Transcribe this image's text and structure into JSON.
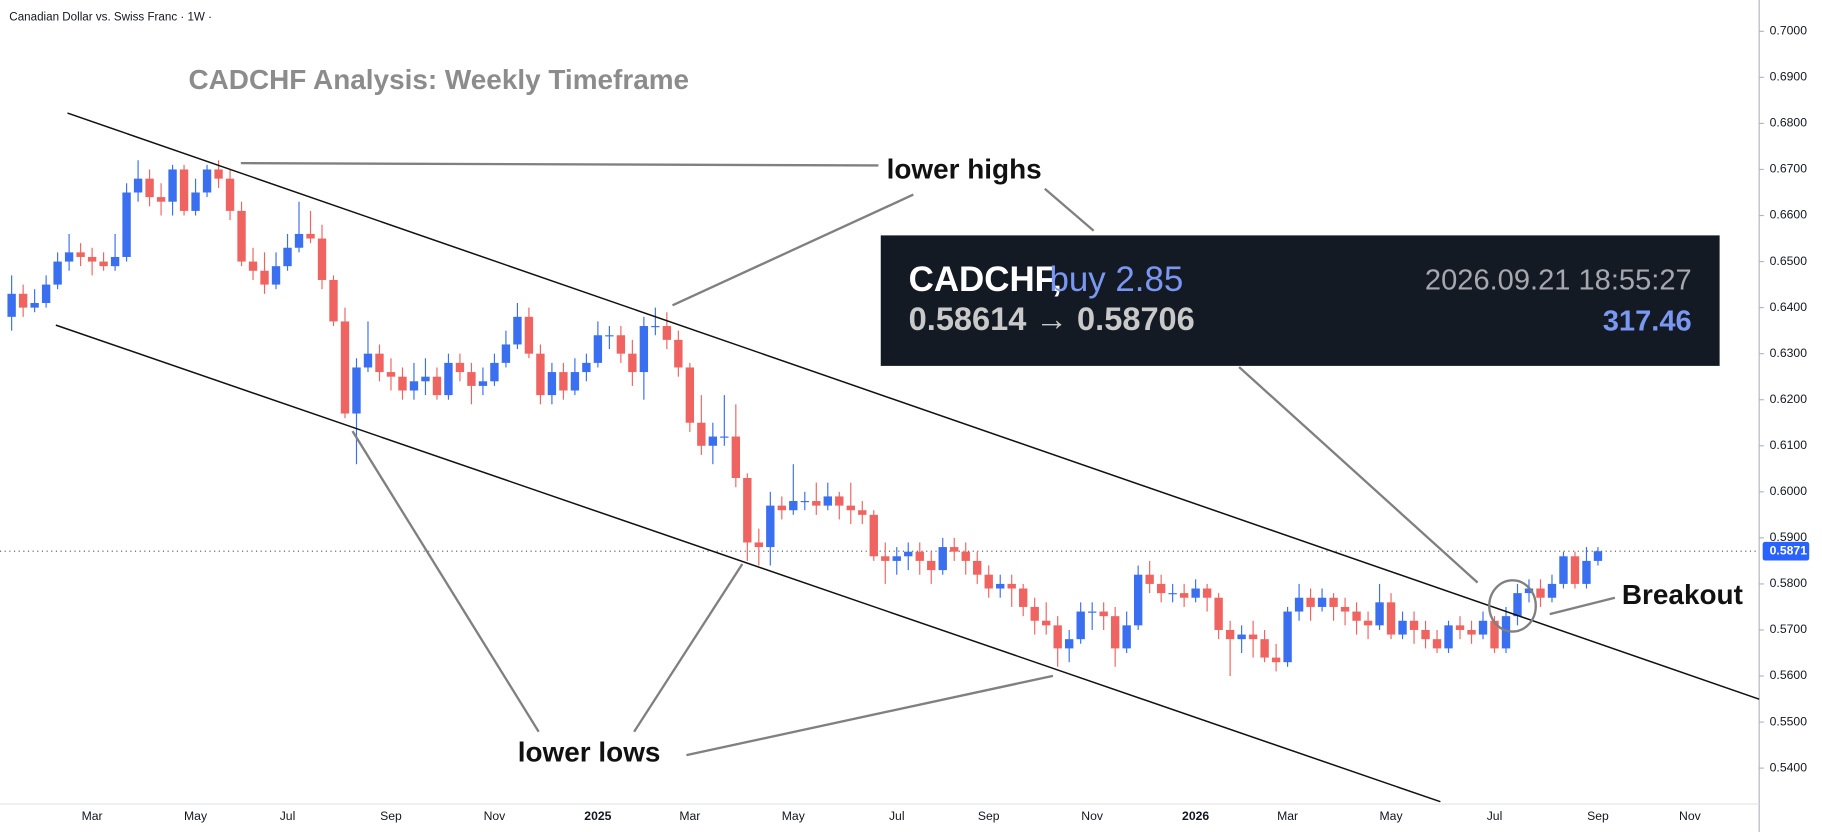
{
  "chart_data": {
    "type": "candlestick",
    "header": "Canadian Dollar vs. Swiss Franc · 1W ·",
    "title": "CADCHF Analysis: Weekly Timeframe",
    "annotations": {
      "lower_highs": "lower highs",
      "lower_lows": "lower lows",
      "breakout": "Breakout"
    },
    "trade_box": {
      "symbol": "CADCHF,",
      "action": "buy 2.85",
      "timestamp": "2026.09.21 18:55:27",
      "prices": "0.58614 → 0.58706",
      "profit": "317.46"
    },
    "up_color": "#3a6ff0",
    "down_color": "#ef6461",
    "last_price": 0.5871,
    "last_price_color": "#2962ff",
    "categories": [
      null,
      null,
      null,
      null,
      null,
      null,
      null,
      "Mar",
      null,
      null,
      null,
      null,
      null,
      null,
      null,
      null,
      "May",
      null,
      null,
      null,
      null,
      null,
      null,
      null,
      "Jul",
      null,
      null,
      null,
      null,
      null,
      null,
      null,
      null,
      "Sep",
      null,
      null,
      null,
      null,
      null,
      null,
      null,
      null,
      "Nov",
      null,
      null,
      null,
      null,
      null,
      null,
      null,
      null,
      "2025",
      null,
      null,
      null,
      null,
      null,
      null,
      null,
      "Mar",
      null,
      null,
      null,
      null,
      null,
      null,
      null,
      null,
      "May",
      null,
      null,
      null,
      null,
      null,
      null,
      null,
      null,
      "Jul",
      null,
      null,
      null,
      null,
      null,
      null,
      null,
      "Sep",
      null,
      null,
      null,
      null,
      null,
      null,
      null,
      null,
      "Nov",
      null,
      null,
      null,
      null,
      null,
      null,
      null,
      null,
      "2026",
      null,
      null,
      null,
      null,
      null,
      null,
      null,
      "Mar",
      null,
      null,
      null,
      null,
      null,
      null,
      null,
      null,
      "May",
      null,
      null,
      null,
      null,
      null,
      null,
      null,
      null,
      "Jul",
      null,
      null,
      null,
      null,
      null,
      null,
      null,
      null,
      "Sep",
      null,
      null,
      null,
      null,
      null,
      null,
      null,
      "Nov",
      null,
      null,
      null,
      null,
      null,
      null
    ],
    "open": [
      0.638,
      0.643,
      0.64,
      0.641,
      0.645,
      0.65,
      0.652,
      0.651,
      0.65,
      0.649,
      0.651,
      0.665,
      0.668,
      0.664,
      0.663,
      0.67,
      0.661,
      0.665,
      0.67,
      0.668,
      0.661,
      0.65,
      0.648,
      0.645,
      0.649,
      0.653,
      0.656,
      0.655,
      0.646,
      0.637,
      0.617,
      0.627,
      0.63,
      0.626,
      0.625,
      0.622,
      0.624,
      0.625,
      0.621,
      0.628,
      0.626,
      0.623,
      0.624,
      0.628,
      0.632,
      0.638,
      0.63,
      0.621,
      0.626,
      0.622,
      0.626,
      0.628,
      0.634,
      0.634,
      0.63,
      0.626,
      0.636,
      0.636,
      0.633,
      0.627,
      0.615,
      0.61,
      0.612,
      0.612,
      0.603,
      0.589,
      0.588,
      0.597,
      0.596,
      0.598,
      0.598,
      0.597,
      0.599,
      0.597,
      0.596,
      0.595,
      0.586,
      0.585,
      0.586,
      0.587,
      0.585,
      0.583,
      0.588,
      0.587,
      0.585,
      0.582,
      0.579,
      0.58,
      0.579,
      0.575,
      0.572,
      0.571,
      0.566,
      0.568,
      0.574,
      0.574,
      0.573,
      0.566,
      0.571,
      0.582,
      0.58,
      0.578,
      0.578,
      0.577,
      0.579,
      0.577,
      0.57,
      0.568,
      0.569,
      0.568,
      0.564,
      0.563,
      0.574,
      0.577,
      0.575,
      0.577,
      0.575,
      0.574,
      0.572,
      0.571,
      0.576,
      0.569,
      0.572,
      0.57,
      0.568,
      0.566,
      0.571,
      0.57,
      0.569,
      0.572,
      0.566,
      0.573,
      0.578,
      0.579,
      0.577,
      0.58,
      0.586,
      0.58,
      0.585,
      null,
      null,
      null,
      null,
      null,
      null,
      null,
      null,
      null,
      null,
      null,
      null,
      null,
      null
    ],
    "high": [
      0.647,
      0.645,
      0.644,
      0.647,
      0.652,
      0.656,
      0.654,
      0.653,
      0.652,
      0.656,
      0.667,
      0.672,
      0.67,
      0.667,
      0.671,
      0.671,
      0.668,
      0.671,
      0.672,
      0.67,
      0.663,
      0.653,
      0.652,
      0.652,
      0.656,
      0.663,
      0.661,
      0.658,
      0.647,
      0.64,
      0.629,
      0.637,
      0.632,
      0.629,
      0.627,
      0.628,
      0.629,
      0.627,
      0.63,
      0.63,
      0.628,
      0.627,
      0.63,
      0.635,
      0.641,
      0.64,
      0.632,
      0.628,
      0.628,
      0.629,
      0.63,
      0.637,
      0.636,
      0.636,
      0.633,
      0.638,
      0.64,
      0.639,
      0.635,
      0.628,
      0.621,
      0.615,
      0.621,
      0.619,
      0.604,
      0.592,
      0.6,
      0.599,
      0.606,
      0.6,
      0.602,
      0.602,
      0.6,
      0.602,
      0.598,
      0.596,
      0.589,
      0.588,
      0.589,
      0.589,
      0.587,
      0.59,
      0.59,
      0.589,
      0.587,
      0.584,
      0.582,
      0.582,
      0.58,
      0.577,
      0.576,
      0.573,
      0.57,
      0.576,
      0.576,
      0.576,
      0.575,
      0.574,
      0.584,
      0.585,
      0.582,
      0.58,
      0.58,
      0.581,
      0.58,
      0.578,
      0.572,
      0.571,
      0.572,
      0.57,
      0.567,
      0.575,
      0.58,
      0.579,
      0.579,
      0.578,
      0.577,
      0.576,
      0.574,
      0.58,
      0.578,
      0.574,
      0.574,
      0.572,
      0.57,
      0.572,
      0.573,
      0.572,
      0.574,
      0.573,
      0.575,
      0.58,
      0.581,
      0.581,
      0.582,
      0.587,
      0.587,
      0.588,
      0.588,
      null,
      null,
      null,
      null,
      null,
      null,
      null,
      null,
      null,
      null,
      null,
      null,
      null,
      null
    ],
    "low": [
      0.635,
      0.638,
      0.639,
      0.64,
      0.644,
      0.648,
      0.649,
      0.647,
      0.648,
      0.648,
      0.65,
      0.663,
      0.662,
      0.66,
      0.66,
      0.66,
      0.66,
      0.664,
      0.666,
      0.659,
      0.649,
      0.646,
      0.643,
      0.644,
      0.648,
      0.652,
      0.654,
      0.644,
      0.636,
      0.616,
      0.606,
      0.626,
      0.624,
      0.622,
      0.62,
      0.62,
      0.621,
      0.62,
      0.62,
      0.624,
      0.619,
      0.621,
      0.623,
      0.627,
      0.631,
      0.629,
      0.619,
      0.619,
      0.62,
      0.621,
      0.624,
      0.627,
      0.631,
      0.628,
      0.623,
      0.62,
      0.634,
      0.631,
      0.625,
      0.613,
      0.608,
      0.606,
      0.61,
      0.601,
      0.585,
      0.584,
      0.584,
      0.594,
      0.595,
      0.596,
      0.595,
      0.596,
      0.594,
      0.593,
      0.593,
      0.585,
      0.58,
      0.582,
      0.583,
      0.582,
      0.58,
      0.582,
      0.585,
      0.582,
      0.58,
      0.577,
      0.577,
      0.575,
      0.573,
      0.569,
      0.569,
      0.562,
      0.563,
      0.567,
      0.57,
      0.57,
      0.562,
      0.565,
      0.57,
      0.578,
      0.576,
      0.576,
      0.575,
      0.576,
      0.574,
      0.568,
      0.56,
      0.565,
      0.564,
      0.563,
      0.561,
      0.562,
      0.572,
      0.572,
      0.574,
      0.572,
      0.571,
      0.569,
      0.568,
      0.57,
      0.568,
      0.568,
      0.567,
      0.566,
      0.565,
      0.565,
      0.568,
      0.567,
      0.568,
      0.565,
      0.565,
      0.571,
      0.576,
      0.575,
      0.576,
      0.579,
      0.579,
      0.579,
      0.584,
      null,
      null,
      null,
      null,
      null,
      null,
      null,
      null,
      null,
      null,
      null,
      null,
      null,
      null
    ],
    "close": [
      0.643,
      0.64,
      0.641,
      0.645,
      0.65,
      0.652,
      0.651,
      0.65,
      0.649,
      0.651,
      0.665,
      0.668,
      0.664,
      0.663,
      0.67,
      0.661,
      0.665,
      0.67,
      0.668,
      0.661,
      0.65,
      0.648,
      0.645,
      0.649,
      0.653,
      0.656,
      0.655,
      0.646,
      0.637,
      0.617,
      0.627,
      0.63,
      0.626,
      0.625,
      0.622,
      0.624,
      0.625,
      0.621,
      0.628,
      0.626,
      0.623,
      0.624,
      0.628,
      0.632,
      0.638,
      0.63,
      0.621,
      0.626,
      0.622,
      0.626,
      0.628,
      0.634,
      0.634,
      0.63,
      0.626,
      0.636,
      0.636,
      0.633,
      0.627,
      0.615,
      0.61,
      0.612,
      0.612,
      0.603,
      0.589,
      0.588,
      0.597,
      0.596,
      0.598,
      0.598,
      0.597,
      0.599,
      0.597,
      0.596,
      0.595,
      0.586,
      0.585,
      0.586,
      0.587,
      0.585,
      0.583,
      0.588,
      0.587,
      0.585,
      0.582,
      0.579,
      0.58,
      0.579,
      0.575,
      0.572,
      0.571,
      0.566,
      0.568,
      0.574,
      0.574,
      0.573,
      0.566,
      0.571,
      0.582,
      0.58,
      0.578,
      0.578,
      0.577,
      0.579,
      0.577,
      0.57,
      0.568,
      0.569,
      0.568,
      0.564,
      0.563,
      0.574,
      0.577,
      0.575,
      0.577,
      0.575,
      0.574,
      0.572,
      0.571,
      0.576,
      0.569,
      0.572,
      0.57,
      0.568,
      0.566,
      0.571,
      0.57,
      0.569,
      0.572,
      0.566,
      0.573,
      0.578,
      0.579,
      0.577,
      0.58,
      0.586,
      0.58,
      0.585,
      0.5871,
      null,
      null,
      null,
      null,
      null,
      null,
      null,
      null,
      null,
      null,
      null,
      null,
      null,
      null
    ],
    "ylim": [
      0.5322,
      0.7068
    ],
    "yticks": [
      {
        "value": 0.54,
        "label": "0.5400"
      },
      {
        "value": 0.55,
        "label": "0.5500"
      },
      {
        "value": 0.56,
        "label": "0.5600"
      },
      {
        "value": 0.57,
        "label": "0.5700"
      },
      {
        "value": 0.58,
        "label": "0.5800"
      },
      {
        "value": 0.59,
        "label": "0.5900"
      },
      {
        "value": 0.6,
        "label": "0.6000"
      },
      {
        "value": 0.61,
        "label": "0.6100"
      },
      {
        "value": 0.62,
        "label": "0.6200"
      },
      {
        "value": 0.63,
        "label": "0.6300"
      },
      {
        "value": 0.64,
        "label": "0.6400"
      },
      {
        "value": 0.65,
        "label": "0.6500"
      },
      {
        "value": 0.66,
        "label": "0.6600"
      },
      {
        "value": 0.67,
        "label": "0.6700"
      },
      {
        "value": 0.68,
        "label": "0.6800"
      },
      {
        "value": 0.69,
        "label": "0.6900"
      },
      {
        "value": 0.7,
        "label": "0.7000"
      }
    ]
  }
}
